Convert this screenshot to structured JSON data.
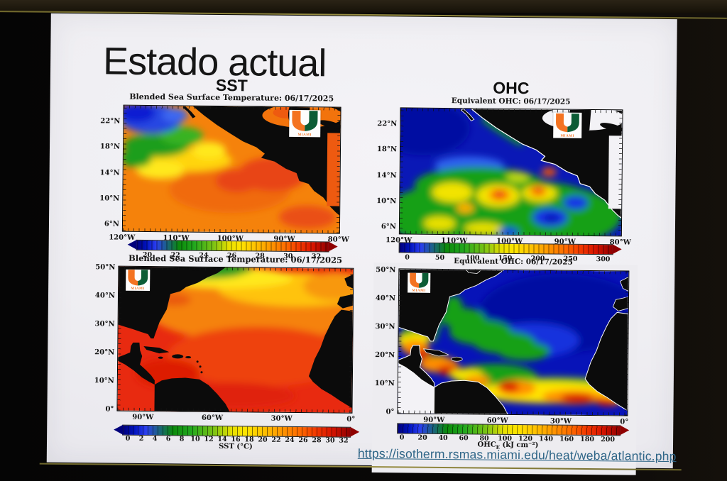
{
  "slide": {
    "title": "Estado actual",
    "columns": {
      "sst": "SST",
      "ohc": "OHC"
    },
    "source_link": "https://isotherm.rsmas.miami.edu/heat/weba/atlantic.php"
  },
  "logo": {
    "wordmark": "MIAMI",
    "orange": "#f47321",
    "green": "#0c5c35"
  },
  "panels": {
    "pacific_sst": {
      "title": "Blended Sea Surface Temperature: 06/17/2025",
      "y_ticks": [
        "22°N",
        "18°N",
        "14°N",
        "10°N",
        "6°N"
      ],
      "x_ticks": [
        "120°W",
        "110°W",
        "100°W",
        "90°W",
        "80°W"
      ],
      "cbar_ticks": [
        "20",
        "22",
        "24",
        "26",
        "28",
        "30",
        "32"
      ]
    },
    "pacific_ohc": {
      "title": "Equivalent OHC: 06/17/2025",
      "y_ticks": [
        "22°N",
        "18°N",
        "14°N",
        "10°N",
        "6°N"
      ],
      "x_ticks": [
        "120°W",
        "110°W",
        "100°W",
        "90°W",
        "80°W"
      ],
      "cbar_ticks": [
        "0",
        "50",
        "100",
        "150",
        "200",
        "250",
        "300"
      ]
    },
    "atlantic_sst": {
      "title": "Blended Sea Surface Temperature: 06/17/2025",
      "y_ticks": [
        "50°N",
        "40°N",
        "30°N",
        "20°N",
        "10°N",
        "0°"
      ],
      "x_ticks": [
        "90°W",
        "60°W",
        "30°W",
        "0°"
      ],
      "cbar_ticks": [
        "0",
        "2",
        "4",
        "6",
        "8",
        "10",
        "12",
        "14",
        "16",
        "18",
        "20",
        "22",
        "24",
        "26",
        "28",
        "30",
        "32"
      ],
      "cbar_label": "SST (°C)"
    },
    "atlantic_ohc": {
      "title": "Equivalent OHC: 06/17/2025",
      "y_ticks": [
        "50°N",
        "40°N",
        "30°N",
        "20°N",
        "10°N",
        "0°"
      ],
      "x_ticks": [
        "90°W",
        "60°W",
        "30°W",
        "0°"
      ],
      "cbar_ticks": [
        "0",
        "20",
        "40",
        "60",
        "80",
        "100",
        "120",
        "140",
        "160",
        "180",
        "200"
      ],
      "cbar_label_pre": "OHC",
      "cbar_label_sub": "E",
      "cbar_label_post": " (kJ cm⁻²)"
    }
  },
  "chart_data": [
    {
      "type": "heatmap",
      "title": "Blended Sea Surface Temperature: 06/17/2025",
      "region": "Eastern tropical Pacific off Mexico / Central America",
      "x_axis": {
        "ticks": [
          "120°W",
          "110°W",
          "100°W",
          "90°W",
          "80°W"
        ]
      },
      "y_axis": {
        "ticks": [
          "22°N",
          "18°N",
          "14°N",
          "10°N",
          "6°N"
        ]
      },
      "colorbar": {
        "min": 20,
        "max": 32,
        "ticks": [
          20,
          22,
          24,
          26,
          28,
          30,
          32
        ],
        "units": "°C",
        "palette": "blue-green-yellow-orange-red",
        "arrows": "both"
      },
      "features": [
        "cool 20-22°C blue water northwest off Baja California",
        "green 23-25°C band near 16-19°N west of 105°W",
        "yellow 25-26°C patches ~14-17°N",
        "most of basin warm orange 28-29°C",
        "red 29-31°C patches south of Mexico and off Guatemala",
        "Gulf of Mexico corner warm orange",
        "land masked black"
      ]
    },
    {
      "type": "heatmap",
      "title": "Equivalent OHC: 06/17/2025",
      "region": "Eastern tropical Pacific off Mexico / Central America",
      "x_axis": {
        "ticks": [
          "120°W",
          "110°W",
          "100°W",
          "90°W",
          "80°W"
        ]
      },
      "y_axis": {
        "ticks": [
          "22°N",
          "18°N",
          "14°N",
          "10°N",
          "6°N"
        ]
      },
      "colorbar": {
        "min": 0,
        "max": 300,
        "ticks": [
          0,
          50,
          100,
          150,
          200,
          250,
          300
        ],
        "units": "kJ cm⁻²",
        "palette": "blue-green-yellow-orange-red",
        "arrows": "right"
      },
      "features": [
        "near-zero OHC (dark navy) north of ~16°N and northwest",
        "green 50-100 field over southern half",
        "yellow 120-160 patches ~8-13°N",
        "orange/red cores ~200-250 near 100°W and 95°W close to coast",
        "low-OHC blue eddies near 88-92°W, 7-12°N",
        "land black, no-data Gulf region white"
      ]
    },
    {
      "type": "heatmap",
      "title": "Blended Sea Surface Temperature: 06/17/2025",
      "region": "North Atlantic, Gulf of Mexico and Caribbean",
      "x_axis": {
        "ticks": [
          "90°W",
          "60°W",
          "30°W",
          "0°"
        ]
      },
      "y_axis": {
        "ticks": [
          "50°N",
          "40°N",
          "30°N",
          "20°N",
          "10°N",
          "0°"
        ]
      },
      "colorbar": {
        "min": 0,
        "max": 32,
        "ticks": [
          0,
          2,
          4,
          6,
          8,
          10,
          12,
          14,
          16,
          18,
          20,
          22,
          24,
          26,
          28,
          30,
          32
        ],
        "units": "°C",
        "label": "SST (°C)",
        "palette": "blue-green-yellow-orange-red",
        "arrows": "both"
      },
      "features": [
        "red 28-30°C across tropics, Caribbean and Gulf of Mexico",
        "orange 24-27°C subtropical gyre",
        "yellow 16-20°C band ~40-45°N",
        "green 8-14°C northwest Atlantic with small cold blue spot ~45°W 48°N",
        "Gulf Stream front visible off US east coast",
        "land masked black"
      ]
    },
    {
      "type": "heatmap",
      "title": "Equivalent OHC: 06/17/2025",
      "region": "North Atlantic, Gulf of Mexico and Caribbean",
      "x_axis": {
        "ticks": [
          "90°W",
          "60°W",
          "30°W",
          "0°"
        ]
      },
      "y_axis": {
        "ticks": [
          "50°N",
          "40°N",
          "30°N",
          "20°N",
          "10°N",
          "0°"
        ]
      },
      "colorbar": {
        "min": 0,
        "max": 200,
        "ticks": [
          0,
          20,
          40,
          60,
          80,
          100,
          120,
          140,
          160,
          180,
          200
        ],
        "units": "kJ cm⁻²",
        "label": "OHCE (kJ cm⁻²)",
        "palette": "blue-green-yellow-orange-red",
        "arrows": "right"
      },
      "features": [
        "near-zero OHC deep blue over most of central/eastern North Atlantic",
        "green 40-80 transition band southwest of the Gulf Stream",
        "high 100-200 yellow-orange-red ridge along 5-15°N tropical band",
        "orange/red cores 140-200 in Caribbean and Gulf of Mexico",
        "coastlines outlined white, land black, Pacific corner no-data white"
      ]
    }
  ]
}
